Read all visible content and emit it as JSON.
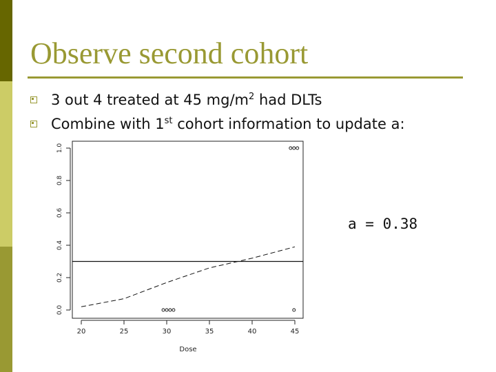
{
  "slide": {
    "title": "Observe second cohort",
    "bullets": [
      {
        "pre": "3 out 4 treated at 45 mg/m",
        "sup": "2",
        "post": " had DLTs"
      },
      {
        "pre": "Combine with 1",
        "sup": "st",
        "post": " cohort information to update a:"
      }
    ],
    "annotation": "a = 0.38"
  },
  "colors": {
    "accent": "#999933",
    "band_dark": "#666600",
    "band_mid": "#cccc66",
    "band_light": "#999933"
  },
  "chart_data": {
    "type": "line",
    "xlabel": "Dose",
    "ylabel": "",
    "xlim": [
      20,
      45
    ],
    "ylim": [
      0,
      1
    ],
    "x_ticks": [
      "20",
      "25",
      "30",
      "35",
      "40",
      "45"
    ],
    "y_ticks": [
      "0.0",
      "0.2",
      "0.4",
      "0.6",
      "0.8",
      "1.0"
    ],
    "series": [
      {
        "style": "dashed",
        "x": [
          20,
          25,
          30,
          35,
          40,
          45
        ],
        "y": [
          0.02,
          0.07,
          0.17,
          0.26,
          0.32,
          0.39
        ]
      }
    ],
    "reference_line": {
      "y": 0.3
    },
    "observations": [
      {
        "x": 29.6,
        "y": 0
      },
      {
        "x": 30.0,
        "y": 0
      },
      {
        "x": 30.4,
        "y": 0
      },
      {
        "x": 30.8,
        "y": 0
      },
      {
        "x": 44.9,
        "y": 0
      },
      {
        "x": 44.5,
        "y": 1
      },
      {
        "x": 44.9,
        "y": 1
      },
      {
        "x": 45.3,
        "y": 1
      }
    ],
    "grid": false,
    "legend": "none"
  }
}
